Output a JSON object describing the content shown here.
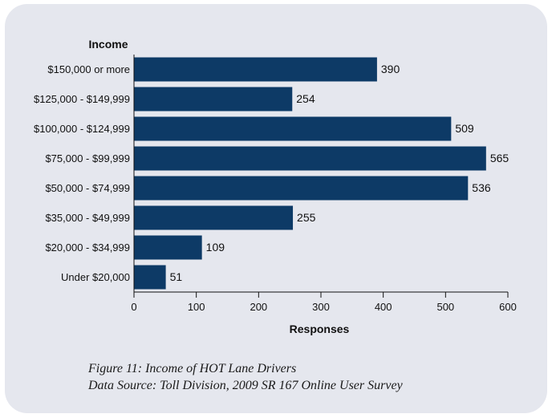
{
  "chart_data": {
    "type": "bar",
    "orientation": "horizontal",
    "category_axis_title": "Income",
    "xlabel": "Responses",
    "categories": [
      "$150,000 or more",
      "$125,000 - $149,999",
      "$100,000 - $124,999",
      "$75,000 - $99,999",
      "$50,000 - $74,999",
      "$35,000 - $49,999",
      "$20,000 - $34,999",
      "Under $20,000"
    ],
    "values": [
      390,
      254,
      509,
      565,
      536,
      255,
      109,
      51
    ],
    "xlim": [
      0,
      600
    ],
    "xticks": [
      0,
      100,
      200,
      300,
      400,
      500,
      600
    ],
    "grid": false,
    "bar_color": "#0d3a66",
    "background_color": "#e5e7ee"
  },
  "caption": {
    "figure_line": "Figure 11: Income of HOT Lane Drivers",
    "source_line": "Data Source: Toll Division, 2009 SR 167 Online User Survey"
  }
}
